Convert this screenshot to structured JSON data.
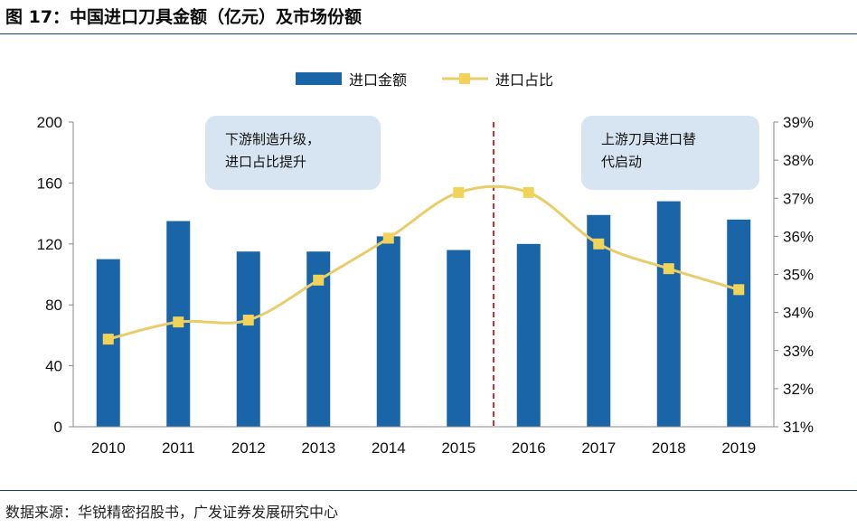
{
  "title": "图 17：中国进口刀具金额（亿元）及市场份额",
  "source": "数据来源：华锐精密招股书，广发证券发展研究中心",
  "colors": {
    "bar": "#1a64a8",
    "line": "#e9cd6b",
    "marker": "#f2d35a",
    "divider": "#d22a2a",
    "callout": "#d7e5f2",
    "rule": "#1a3e78"
  },
  "annotations": [
    {
      "lines": [
        "下游制造升级，",
        "进口占比提升"
      ]
    },
    {
      "lines": [
        "上游刀具进口替",
        "代启动"
      ]
    }
  ],
  "divider_between": [
    "2015",
    "2016"
  ],
  "chart_data": {
    "type": "bar",
    "categories": [
      "2010",
      "2011",
      "2012",
      "2013",
      "2014",
      "2015",
      "2016",
      "2017",
      "2018",
      "2019"
    ],
    "series": [
      {
        "name": "进口金额",
        "type": "bar",
        "axis": "left",
        "values": [
          110,
          135,
          115,
          115,
          125,
          116,
          120,
          139,
          148,
          136
        ]
      },
      {
        "name": "进口占比",
        "type": "line",
        "axis": "right",
        "unit": "%",
        "values": [
          33.3,
          33.75,
          33.8,
          34.85,
          35.95,
          37.15,
          37.15,
          35.8,
          35.15,
          34.6
        ]
      }
    ],
    "y_left": {
      "range": [
        0,
        200
      ],
      "ticks": [
        "0",
        "40",
        "80",
        "120",
        "160",
        "200"
      ]
    },
    "y_right": {
      "range": [
        31,
        39
      ],
      "ticks": [
        "31%",
        "32%",
        "33%",
        "34%",
        "35%",
        "36%",
        "37%",
        "38%",
        "39%"
      ]
    },
    "legend_position": "top-center",
    "grid": false
  }
}
